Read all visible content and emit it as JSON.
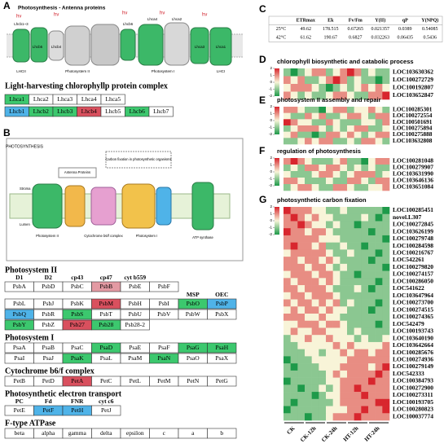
{
  "panel_labels": [
    "A",
    "B",
    "C",
    "D",
    "E",
    "F",
    "G"
  ],
  "antenna": {
    "title": "Photosynthesis - Antenna proteins",
    "light": "hν",
    "labels": [
      "LHCII",
      "Photosystem II",
      "Photosystem I",
      "LHCI",
      "Lhcb1~3",
      "Lhcb6",
      "Lhcb5",
      "Lhcb4",
      "Lhca1",
      "Lhca4",
      "Lhca2",
      "Lhca3"
    ]
  },
  "lhc": {
    "title": "Light-harvesting chlorophyllp protein complex",
    "rows": [
      [
        {
          "name": "Lhca1",
          "color": "#3cc86e"
        },
        "Lhca2",
        "Lhca3",
        "Lhca4",
        "Lhca5"
      ],
      [
        {
          "name": "Lhcb1",
          "color": "#4fb3e8"
        },
        {
          "name": "Lhcb2",
          "color": "#3cc86e"
        },
        {
          "name": "Lhcb3",
          "color": "#3cc86e"
        },
        {
          "name": "Lhcb4",
          "color": "#d9505e"
        },
        "Lhcb5",
        {
          "name": "Lhcb6",
          "color": "#3cc86e"
        },
        "Lhcb7"
      ]
    ]
  },
  "pathway": {
    "labels": [
      "PHOTOSYNTHESIS",
      "Antenna Proteins",
      "Carbon fixation in photosynthetic organisms",
      "Photosystem II",
      "Cytochrome b6/f complex",
      "Photosystem I",
      "ATP synthase",
      "Stroma",
      "Lumen"
    ]
  },
  "complexes": [
    {
      "title": "Photosystem II",
      "rows": [
        {
          "labels": [
            "D1",
            "D2",
            "cp43",
            "cp47",
            "cyt b559",
            null
          ],
          "cells": [
            "PsbA",
            "PsbD",
            "PsbC",
            {
              "name": "PsbB",
              "color": "#e39aa3"
            },
            "PsbE",
            "PsbF"
          ]
        },
        {
          "labels": [
            null,
            null,
            null,
            null,
            null,
            null,
            "MSP",
            "OEC"
          ],
          "cells": [
            "PsbL",
            "PsbJ",
            "PsbK",
            {
              "name": "PsbM",
              "color": "#d9505e"
            },
            "PsbH",
            "PsbI",
            {
              "name": "PsbO",
              "color": "#3cc86e"
            },
            {
              "name": "PsbP",
              "color": "#4fb3e8"
            }
          ]
        },
        {
          "cells": [
            {
              "name": "PsbQ",
              "color": "#4fb3e8"
            },
            "PsbR",
            {
              "name": "PsbS",
              "color": "#3cc86e"
            },
            "PsbT",
            "PsbU",
            "PsbV",
            "PsbW",
            "PsbX"
          ]
        },
        {
          "cells": [
            {
              "name": "PsbY",
              "color": "#3cc86e"
            },
            "PsbZ",
            {
              "name": "Psb27",
              "color": "#d9505e"
            },
            {
              "name": "Psb28",
              "color": "#3cc86e"
            },
            "Psb28-2"
          ]
        }
      ]
    },
    {
      "title": "Photosystem I",
      "rows": [
        {
          "cells": [
            "PsaA",
            "PsaB",
            "PsaC",
            {
              "name": "PsaD",
              "color": "#3cc86e"
            },
            "PsaE",
            "PsaF",
            {
              "name": "PsaG",
              "color": "#3cc86e"
            },
            {
              "name": "PsaH",
              "color": "#3cc86e"
            }
          ]
        },
        {
          "cells": [
            "PsaI",
            "PsaJ",
            {
              "name": "PsaK",
              "color": "#3cc86e"
            },
            "PsaL",
            "PsaM",
            {
              "name": "PsaN",
              "color": "#3cc86e"
            },
            "PsaO",
            "PsaX"
          ]
        }
      ]
    },
    {
      "title": "Cytochrome b6/f complex",
      "rows": [
        {
          "cells": [
            "PetB",
            "PetD",
            {
              "name": "PetA",
              "color": "#d9505e"
            },
            "PetC",
            "PetL",
            "PetM",
            "PetN",
            "PetG"
          ]
        }
      ]
    },
    {
      "title": "Photosynthetic electron transport",
      "rows": [
        {
          "labels": [
            "PC",
            "Fd",
            "FNR",
            "cyt c6"
          ],
          "cells": [
            "PetE",
            {
              "name": "PetF",
              "color": "#4fb3e8"
            },
            {
              "name": "PetH",
              "color": "#4fb3e8"
            },
            "PetJ"
          ]
        }
      ]
    },
    {
      "title": "F-type ATPase",
      "rows": [
        {
          "cells": [
            "beta",
            "alpha",
            "gamma",
            "delta",
            "epsilon",
            "c",
            "a",
            "b"
          ]
        }
      ]
    }
  ],
  "photo_table": {
    "header": [
      "ETRmax",
      "Ek",
      "Fv/Fm",
      "Y(II)",
      "qP",
      "Y(NPQ)"
    ],
    "rows": [
      {
        "label": "25°C",
        "values": [
          49.62,
          178.515,
          0.67265,
          0.021357,
          0.0389,
          0.54085
        ]
      },
      {
        "label": "42°C",
        "values": [
          61.62,
          190.67,
          0.6827,
          0.032263,
          0.06435,
          0.5436
        ]
      }
    ]
  },
  "color_scale": {
    "lim": [
      -2,
      2
    ],
    "ticks": [
      2,
      1,
      0,
      -1,
      -2
    ],
    "colors": [
      "#1e9a4a",
      "#f8f4d8",
      "#d8262e"
    ]
  },
  "groups": [
    "CK",
    "CK-12h",
    "CK-24h",
    "HT-12h",
    "HT-24h"
  ],
  "heatmaps": [
    {
      "title": "chlorophyll biosynthetic and catabolic process",
      "genes": [
        "LOC103630362",
        "LOC100272729",
        "LOC100192807",
        "LOC103652847"
      ],
      "values": [
        [
          -1,
          -2,
          -1,
          0,
          1,
          1,
          -1,
          0,
          1,
          2,
          1,
          -1,
          0,
          -1,
          -1
        ],
        [
          1,
          0,
          1,
          -1,
          -1,
          0,
          1,
          2,
          1,
          -1,
          0,
          -1,
          -1,
          -2,
          -1
        ],
        [
          0,
          1,
          1,
          1,
          0,
          -1,
          -2,
          -1,
          0,
          -1,
          0,
          1,
          0,
          1,
          0
        ],
        [
          1,
          0,
          -1,
          0,
          -1,
          -1,
          0,
          1,
          1,
          0,
          -1,
          -1,
          1,
          1,
          2
        ]
      ]
    },
    {
      "title": "photosystem II assembly and repair",
      "genes": [
        "LOC100285301",
        "LOC100272554",
        "LOC100501691",
        "LOC100275894",
        "LOC100275888",
        "LOC103632808"
      ],
      "values": [
        [
          1,
          1,
          0,
          -1,
          -1,
          -2,
          0,
          1,
          1,
          -1,
          0,
          0,
          1,
          0,
          -1
        ],
        [
          0,
          -1,
          -1,
          1,
          0,
          1,
          -1,
          -1,
          0,
          1,
          1,
          0,
          -1,
          1,
          1
        ],
        [
          2,
          1,
          0,
          0,
          -1,
          -1,
          1,
          0,
          -1,
          -1,
          -1,
          0,
          0,
          -1,
          1
        ],
        [
          -1,
          0,
          1,
          1,
          1,
          0,
          -1,
          0,
          -1,
          0,
          1,
          1,
          -1,
          -1,
          0
        ],
        [
          0,
          1,
          -1,
          -1,
          -2,
          -1,
          1,
          1,
          0,
          1,
          0,
          -1,
          0,
          1,
          1
        ],
        [
          -1,
          -1,
          0,
          1,
          0,
          1,
          1,
          -1,
          -1,
          0,
          -1,
          1,
          1,
          0,
          -1
        ]
      ]
    },
    {
      "title": "regulation of photosynthesis",
      "genes": [
        "LOC100281048",
        "LOC100279907",
        "LOC103631990",
        "LOC103646136",
        "LOC103651084"
      ],
      "values": [
        [
          1,
          2,
          1,
          0,
          -1,
          -1,
          -1,
          0,
          1,
          -1,
          -1,
          -2,
          0,
          1,
          1
        ],
        [
          -1,
          0,
          -1,
          1,
          1,
          0,
          1,
          1,
          0,
          -1,
          0,
          -1,
          0,
          -1,
          -1
        ],
        [
          0,
          -1,
          -1,
          -1,
          0,
          1,
          1,
          0,
          -1,
          0,
          1,
          1,
          1,
          -1,
          0
        ],
        [
          1,
          1,
          0,
          -1,
          -1,
          -1,
          0,
          -1,
          -1,
          1,
          1,
          0,
          -1,
          1,
          1
        ],
        [
          -1,
          0,
          1,
          1,
          0,
          -1,
          -1,
          1,
          1,
          0,
          -1,
          -1,
          0,
          0,
          1
        ]
      ]
    },
    {
      "title": "photosynthetic carbon fixation",
      "genes": [
        "LOC100285451",
        "novel.L307",
        "LOC100272845",
        "LOC103626199",
        "LOC100279748",
        "LOC100284598",
        "LOC100216767",
        "LOC542261",
        "LOC100279820",
        "LOC100274157",
        "LOC100286050",
        "LOC541622",
        "LOC103647964",
        "LOC100273700",
        "LOC100274515",
        "LOC100274365",
        "LOC542479",
        "LOC100193743",
        "LOC103640190",
        "LOC103642664",
        "LOC100285676",
        "LOC100274936",
        "LOC100279149",
        "LOC542333",
        "LOC100384793",
        "LOC100272900",
        "LOC100273311",
        "LOC100193705",
        "LOC100280823",
        "LOC100037774"
      ],
      "values": [
        [
          2,
          1,
          1,
          1,
          0,
          0,
          -1,
          -1,
          0,
          -1,
          -1,
          -1,
          -1,
          -1,
          -2
        ],
        [
          1,
          2,
          1,
          0,
          1,
          0,
          0,
          -1,
          -1,
          -1,
          -1,
          0,
          -1,
          -2,
          -1
        ],
        [
          1,
          1,
          2,
          1,
          0,
          0,
          -1,
          0,
          -1,
          -1,
          -2,
          -1,
          -1,
          -1,
          -1
        ],
        [
          2,
          1,
          1,
          0,
          1,
          1,
          0,
          -1,
          -1,
          -1,
          -1,
          -1,
          -2,
          -1,
          -1
        ],
        [
          1,
          1,
          1,
          1,
          1,
          0,
          0,
          0,
          -1,
          -1,
          -1,
          -1,
          -1,
          -1,
          -2
        ],
        [
          1,
          2,
          1,
          1,
          0,
          1,
          -1,
          -1,
          0,
          -1,
          -1,
          -2,
          -1,
          -1,
          -1
        ],
        [
          0,
          1,
          1,
          1,
          1,
          1,
          0,
          -1,
          -1,
          0,
          -1,
          -1,
          -1,
          -2,
          -1
        ],
        [
          1,
          1,
          0,
          1,
          1,
          0,
          1,
          0,
          -1,
          -1,
          -1,
          -1,
          -2,
          -1,
          -1
        ],
        [
          1,
          1,
          1,
          0,
          1,
          1,
          0,
          -1,
          0,
          -1,
          -1,
          -1,
          -1,
          -1,
          -2
        ],
        [
          0,
          1,
          1,
          1,
          0,
          1,
          1,
          0,
          -1,
          -1,
          -2,
          -1,
          -1,
          -1,
          -1
        ],
        [
          1,
          0,
          1,
          1,
          1,
          0,
          1,
          0,
          -1,
          -1,
          -1,
          -1,
          -1,
          -2,
          -1
        ],
        [
          1,
          1,
          0,
          1,
          1,
          1,
          0,
          -1,
          -1,
          -1,
          0,
          -1,
          -2,
          -1,
          -1
        ],
        [
          0,
          1,
          1,
          0,
          1,
          1,
          1,
          0,
          -1,
          -1,
          -1,
          -1,
          -1,
          -1,
          -1
        ],
        [
          1,
          0,
          1,
          1,
          0,
          1,
          0,
          1,
          -1,
          0,
          -1,
          -1,
          -1,
          -2,
          -1
        ],
        [
          0,
          1,
          0,
          1,
          1,
          0,
          1,
          0,
          0,
          -1,
          -1,
          -1,
          -2,
          -1,
          -1
        ],
        [
          1,
          1,
          1,
          0,
          0,
          1,
          0,
          0,
          -1,
          -1,
          -1,
          -1,
          -1,
          -1,
          -1
        ],
        [
          0,
          0,
          1,
          1,
          1,
          0,
          1,
          1,
          0,
          -1,
          -1,
          -1,
          -1,
          -2,
          -1
        ],
        [
          0,
          1,
          0,
          0,
          1,
          1,
          0,
          0,
          0,
          -1,
          0,
          -1,
          -1,
          -1,
          -1
        ],
        [
          -1,
          0,
          0,
          1,
          0,
          0,
          1,
          0,
          0,
          0,
          -1,
          0,
          -1,
          -1,
          0
        ],
        [
          -1,
          -1,
          0,
          0,
          0,
          0,
          0,
          1,
          0,
          1,
          0,
          0,
          0,
          0,
          1
        ],
        [
          -1,
          -1,
          -1,
          0,
          0,
          -1,
          0,
          0,
          1,
          0,
          1,
          1,
          0,
          1,
          1
        ],
        [
          -2,
          -1,
          -1,
          -1,
          0,
          0,
          0,
          0,
          0,
          1,
          1,
          1,
          1,
          1,
          1
        ],
        [
          -1,
          -2,
          -1,
          -1,
          -1,
          0,
          0,
          0,
          1,
          1,
          1,
          1,
          0,
          1,
          2
        ],
        [
          -1,
          -1,
          -1,
          -1,
          -1,
          -1,
          0,
          1,
          0,
          1,
          1,
          1,
          1,
          2,
          1
        ],
        [
          -2,
          -1,
          -1,
          -1,
          -1,
          -1,
          0,
          0,
          1,
          1,
          1,
          1,
          2,
          1,
          1
        ],
        [
          -1,
          -1,
          -2,
          -1,
          -1,
          0,
          -1,
          0,
          1,
          1,
          2,
          1,
          1,
          1,
          1
        ],
        [
          -1,
          -1,
          -1,
          -1,
          -2,
          -1,
          0,
          0,
          1,
          1,
          1,
          2,
          1,
          1,
          1
        ],
        [
          -1,
          -2,
          -1,
          -1,
          -1,
          -1,
          -1,
          0,
          1,
          1,
          1,
          1,
          1,
          2,
          2
        ],
        [
          -2,
          -1,
          -1,
          -1,
          -1,
          -1,
          0,
          0,
          0,
          1,
          1,
          2,
          1,
          1,
          2
        ],
        [
          -1,
          -1,
          -1,
          -2,
          -1,
          -1,
          0,
          1,
          1,
          1,
          2,
          1,
          1,
          1,
          1
        ]
      ]
    }
  ]
}
